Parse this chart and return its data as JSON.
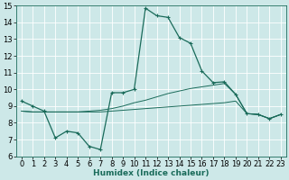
{
  "xlabel": "Humidex (Indice chaleur)",
  "bg_color": "#cde8e8",
  "grid_color": "#b8d8d8",
  "line_color": "#1a6b5a",
  "xlim": [
    -0.5,
    23.5
  ],
  "ylim": [
    6,
    15
  ],
  "xticks": [
    0,
    1,
    2,
    3,
    4,
    5,
    6,
    7,
    8,
    9,
    10,
    11,
    12,
    13,
    14,
    15,
    16,
    17,
    18,
    19,
    20,
    21,
    22,
    23
  ],
  "yticks": [
    6,
    7,
    8,
    9,
    10,
    11,
    12,
    13,
    14,
    15
  ],
  "line_main_x": [
    0,
    1,
    2,
    3,
    4,
    5,
    6,
    7,
    8,
    9,
    10,
    11,
    12,
    13,
    14,
    15,
    16,
    17,
    18,
    19,
    20,
    21,
    22,
    23
  ],
  "line_main_y": [
    9.3,
    9.0,
    8.7,
    7.1,
    7.5,
    7.4,
    6.6,
    6.4,
    9.8,
    9.8,
    10.0,
    14.85,
    14.4,
    14.3,
    13.1,
    12.75,
    11.1,
    10.4,
    10.45,
    9.7,
    8.55,
    8.5,
    8.25,
    8.5
  ],
  "line_flat1_x": [
    0,
    1,
    2,
    3,
    4,
    5,
    6,
    7,
    8,
    9,
    10,
    11,
    12,
    13,
    14,
    15,
    16,
    17,
    18,
    19,
    20,
    21,
    22,
    23
  ],
  "line_flat1_y": [
    8.7,
    8.65,
    8.65,
    8.65,
    8.65,
    8.65,
    8.65,
    8.65,
    8.7,
    8.75,
    8.8,
    8.85,
    8.9,
    8.95,
    9.0,
    9.05,
    9.1,
    9.15,
    9.2,
    9.3,
    8.55,
    8.5,
    8.25,
    8.5
  ],
  "line_flat2_x": [
    0,
    1,
    2,
    3,
    4,
    5,
    6,
    7,
    8,
    9,
    10,
    11,
    12,
    13,
    14,
    15,
    16,
    17,
    18,
    19,
    20,
    21,
    22,
    23
  ],
  "line_flat2_y": [
    8.7,
    8.65,
    8.65,
    8.65,
    8.65,
    8.65,
    8.7,
    8.75,
    8.85,
    9.0,
    9.2,
    9.35,
    9.55,
    9.75,
    9.9,
    10.05,
    10.15,
    10.25,
    10.35,
    9.7,
    8.55,
    8.5,
    8.25,
    8.5
  ],
  "fontsize_label": 6.5,
  "fontsize_tick": 6.0
}
